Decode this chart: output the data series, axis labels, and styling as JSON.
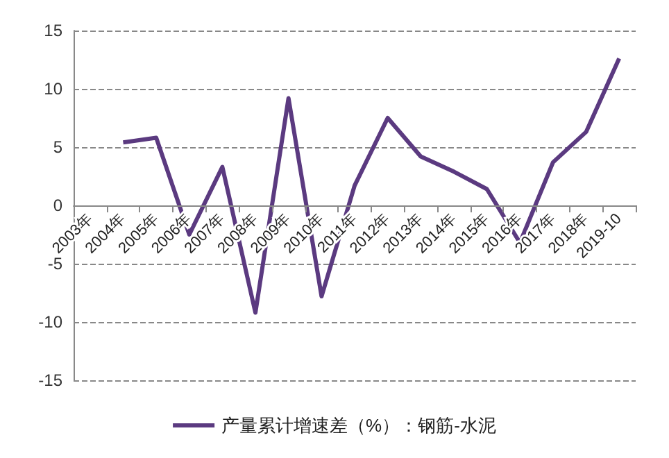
{
  "chart_data": {
    "type": "line",
    "categories": [
      "2003年",
      "2004年",
      "2005年",
      "2006年",
      "2007年",
      "2008年",
      "2009年",
      "2010年",
      "2011年",
      "2012年",
      "2013年",
      "2014年",
      "2015年",
      "2016年",
      "2017年",
      "2018年",
      "2019-10"
    ],
    "series": [
      {
        "name": "产量累计增速差（%）：钢筋-水泥",
        "color": "#5b3a80",
        "values": [
          null,
          5.4,
          5.8,
          -2.5,
          3.3,
          -9.2,
          9.2,
          -7.8,
          1.7,
          7.5,
          4.2,
          2.9,
          1.4,
          -3.2,
          3.7,
          6.3,
          12.6
        ]
      }
    ],
    "ylim": [
      -15,
      15
    ],
    "yticks": [
      -15,
      -10,
      -5,
      0,
      5,
      10,
      15
    ],
    "grid": "y",
    "legend": "bottom",
    "marker": "none",
    "line_style": "solid"
  }
}
